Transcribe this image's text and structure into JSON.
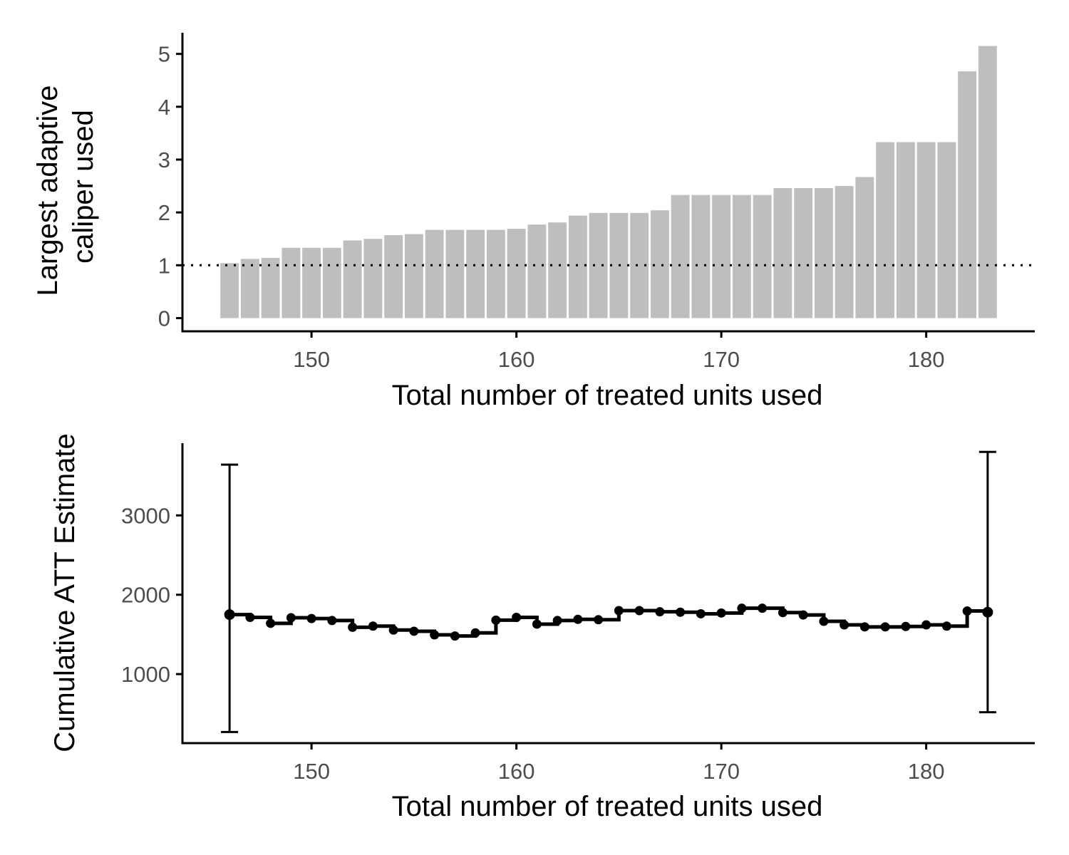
{
  "chart_data": [
    {
      "type": "bar",
      "xlabel": "Total number of treated units used",
      "ylabel": [
        "Largest adaptive",
        "caliper used"
      ],
      "xlim": [
        143.7,
        185.3
      ],
      "ylim": [
        -0.25,
        5.4
      ],
      "xticks": [
        150,
        160,
        170,
        180
      ],
      "yticks": [
        0,
        1,
        2,
        3,
        4,
        5
      ],
      "reference_line": {
        "y": 1,
        "style": "dotted"
      },
      "bar_color": "#bebebe",
      "grid": false,
      "x": [
        146,
        147,
        148,
        149,
        150,
        151,
        152,
        153,
        154,
        155,
        156,
        157,
        158,
        159,
        160,
        161,
        162,
        163,
        164,
        165,
        166,
        167,
        168,
        169,
        170,
        171,
        172,
        173,
        174,
        175,
        176,
        177,
        178,
        179,
        180,
        181,
        182,
        183
      ],
      "values": [
        1.04,
        1.12,
        1.14,
        1.33,
        1.33,
        1.33,
        1.47,
        1.5,
        1.57,
        1.59,
        1.67,
        1.67,
        1.67,
        1.67,
        1.69,
        1.77,
        1.81,
        1.94,
        1.99,
        1.99,
        1.99,
        2.04,
        2.33,
        2.33,
        2.33,
        2.33,
        2.33,
        2.46,
        2.46,
        2.46,
        2.5,
        2.67,
        3.33,
        3.33,
        3.33,
        3.33,
        4.67,
        5.15
      ]
    },
    {
      "type": "line",
      "xlabel": "Total number of treated units used",
      "ylabel": "Cumulative ATT Estimate",
      "xlim": [
        143.7,
        185.3
      ],
      "ylim": [
        130,
        3910
      ],
      "xticks": [
        150,
        160,
        170,
        180
      ],
      "yticks": [
        1000,
        2000,
        3000
      ],
      "line_style": "step",
      "color": "#000000",
      "grid": false,
      "x": [
        146,
        147,
        148,
        149,
        150,
        151,
        152,
        153,
        154,
        155,
        156,
        157,
        158,
        159,
        160,
        161,
        162,
        163,
        164,
        165,
        166,
        167,
        168,
        169,
        170,
        171,
        172,
        173,
        174,
        175,
        176,
        177,
        178,
        179,
        180,
        181,
        182,
        183
      ],
      "values": [
        1750,
        1715,
        1640,
        1710,
        1700,
        1675,
        1590,
        1605,
        1555,
        1540,
        1495,
        1480,
        1520,
        1680,
        1715,
        1630,
        1675,
        1690,
        1685,
        1800,
        1800,
        1785,
        1780,
        1760,
        1770,
        1830,
        1830,
        1775,
        1745,
        1665,
        1620,
        1595,
        1595,
        1600,
        1620,
        1605,
        1795,
        1780
      ],
      "error_bars": [
        {
          "x": 146,
          "low": 270,
          "high": 3640
        },
        {
          "x": 183,
          "low": 520,
          "high": 3800
        }
      ]
    }
  ]
}
